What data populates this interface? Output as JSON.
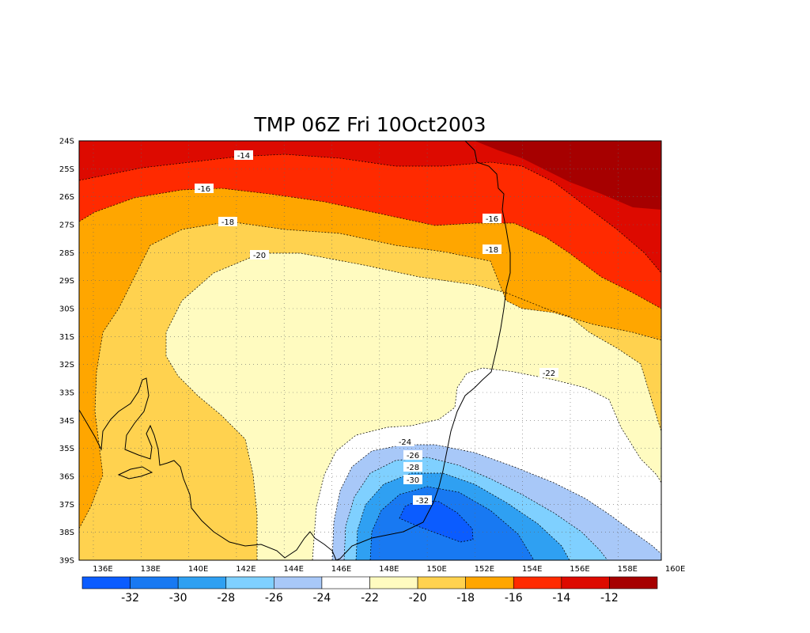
{
  "title": "TMP 06Z Fri 10Oct2003",
  "map": {
    "lat_labels": [
      "24S",
      "25S",
      "26S",
      "27S",
      "28S",
      "29S",
      "30S",
      "31S",
      "32S",
      "33S",
      "34S",
      "35S",
      "36S",
      "37S",
      "38S",
      "39S"
    ],
    "lon_labels": [
      "136E",
      "138E",
      "140E",
      "142E",
      "144E",
      "146E",
      "148E",
      "150E",
      "152E",
      "154E",
      "156E",
      "158E",
      "160E"
    ],
    "contour_labels": [
      "-14",
      "-16",
      "-16",
      "-18",
      "-18",
      "-20",
      "-22",
      "-24",
      "-26",
      "-28",
      "-30",
      "-32"
    ]
  },
  "colorbar": {
    "colors": [
      "#0b5cff",
      "#1879f2",
      "#2fa0f2",
      "#7fd0ff",
      "#a8c8f8",
      "#ffffff",
      "#fffbc0",
      "#ffd24f",
      "#ffa600",
      "#ff2a00",
      "#dd0a00",
      "#a60000"
    ],
    "tick_labels": [
      "-32",
      "-30",
      "-28",
      "-26",
      "-24",
      "-22",
      "-20",
      "-18",
      "-16",
      "-14",
      "-12"
    ]
  }
}
